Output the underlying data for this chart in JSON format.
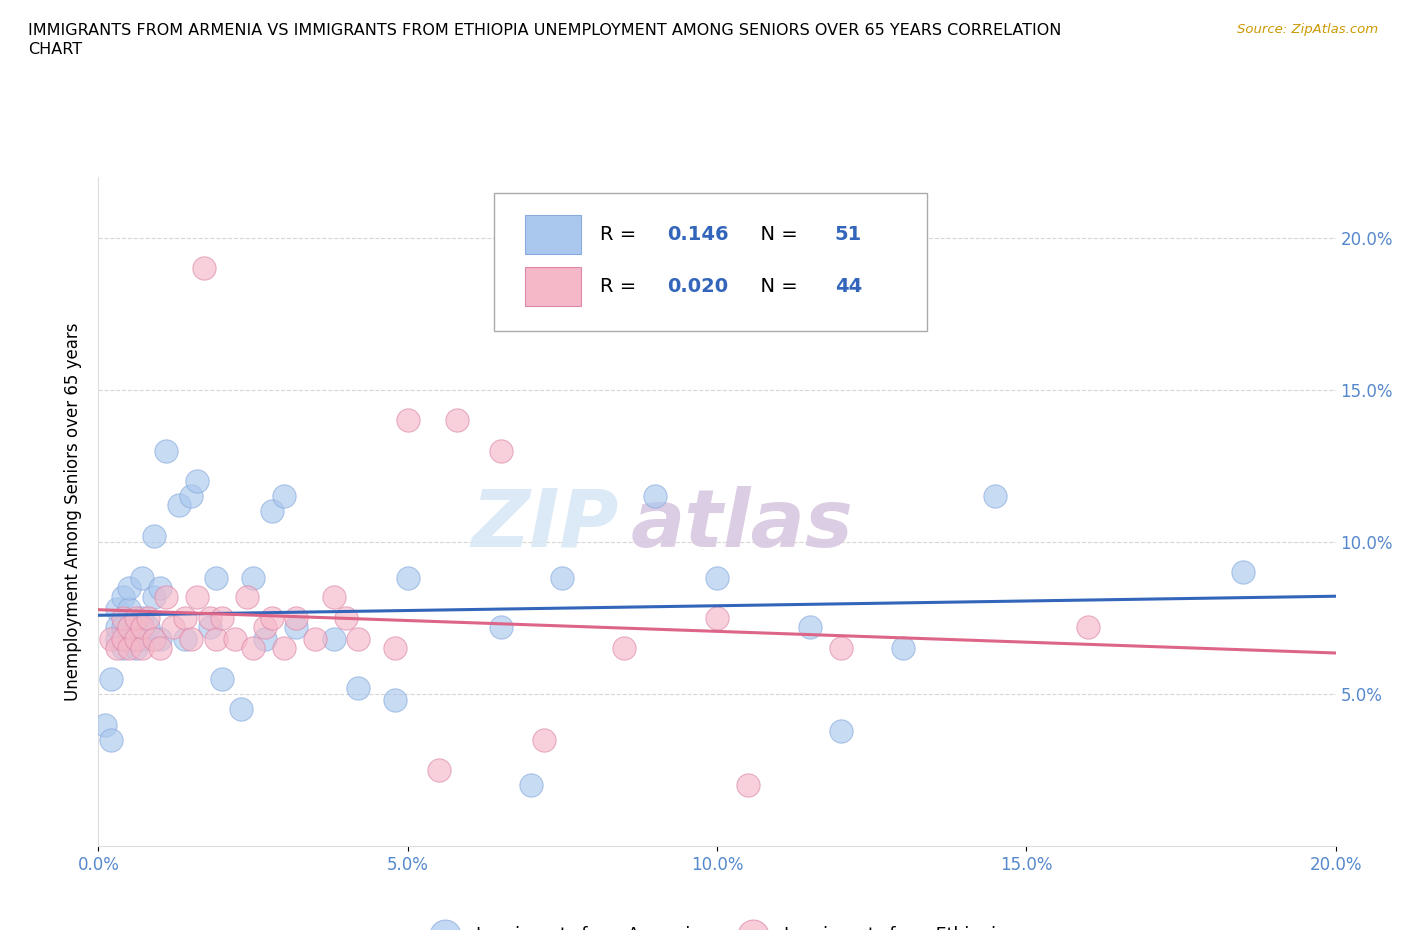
{
  "title_line1": "IMMIGRANTS FROM ARMENIA VS IMMIGRANTS FROM ETHIOPIA UNEMPLOYMENT AMONG SENIORS OVER 65 YEARS CORRELATION",
  "title_line2": "CHART",
  "source": "Source: ZipAtlas.com",
  "ylabel": "Unemployment Among Seniors over 65 years",
  "xlim": [
    0.0,
    0.2
  ],
  "ylim": [
    0.0,
    0.22
  ],
  "xticks": [
    0.0,
    0.05,
    0.1,
    0.15,
    0.2
  ],
  "xtick_labels": [
    "0.0%",
    "5.0%",
    "10.0%",
    "15.0%",
    "20.0%"
  ],
  "yticks": [
    0.05,
    0.1,
    0.15,
    0.2
  ],
  "ytick_labels": [
    "5.0%",
    "10.0%",
    "15.0%",
    "20.0%"
  ],
  "grid_color": "#cccccc",
  "background_color": "#ffffff",
  "watermark_zip": "ZIP",
  "watermark_atlas": "atlas",
  "armenia_color": "#aac8ee",
  "ethiopia_color": "#f5b8c8",
  "armenia_line_color": "#3366bb",
  "ethiopia_line_color": "#dd6688",
  "armenia_R": 0.146,
  "armenia_N": 51,
  "ethiopia_R": 0.02,
  "ethiopia_N": 44,
  "armenia_x": [
    0.001,
    0.002,
    0.002,
    0.003,
    0.003,
    0.003,
    0.004,
    0.004,
    0.004,
    0.005,
    0.005,
    0.005,
    0.005,
    0.006,
    0.006,
    0.007,
    0.007,
    0.007,
    0.008,
    0.009,
    0.009,
    0.01,
    0.01,
    0.011,
    0.013,
    0.014,
    0.015,
    0.016,
    0.018,
    0.019,
    0.02,
    0.023,
    0.025,
    0.027,
    0.028,
    0.03,
    0.032,
    0.038,
    0.042,
    0.048,
    0.05,
    0.065,
    0.07,
    0.075,
    0.09,
    0.1,
    0.115,
    0.12,
    0.13,
    0.145,
    0.185
  ],
  "armenia_y": [
    0.04,
    0.035,
    0.055,
    0.068,
    0.072,
    0.078,
    0.065,
    0.072,
    0.082,
    0.068,
    0.072,
    0.078,
    0.085,
    0.065,
    0.072,
    0.068,
    0.075,
    0.088,
    0.072,
    0.082,
    0.102,
    0.068,
    0.085,
    0.13,
    0.112,
    0.068,
    0.115,
    0.12,
    0.072,
    0.088,
    0.055,
    0.045,
    0.088,
    0.068,
    0.11,
    0.115,
    0.072,
    0.068,
    0.052,
    0.048,
    0.088,
    0.072,
    0.02,
    0.088,
    0.115,
    0.088,
    0.072,
    0.038,
    0.065,
    0.115,
    0.09
  ],
  "ethiopia_x": [
    0.002,
    0.003,
    0.004,
    0.004,
    0.005,
    0.005,
    0.006,
    0.006,
    0.007,
    0.007,
    0.008,
    0.009,
    0.01,
    0.011,
    0.012,
    0.014,
    0.015,
    0.016,
    0.017,
    0.018,
    0.019,
    0.02,
    0.022,
    0.024,
    0.025,
    0.027,
    0.028,
    0.03,
    0.032,
    0.035,
    0.038,
    0.04,
    0.042,
    0.048,
    0.05,
    0.055,
    0.058,
    0.065,
    0.072,
    0.085,
    0.1,
    0.105,
    0.12,
    0.16
  ],
  "ethiopia_y": [
    0.068,
    0.065,
    0.068,
    0.075,
    0.065,
    0.072,
    0.068,
    0.075,
    0.065,
    0.072,
    0.075,
    0.068,
    0.065,
    0.082,
    0.072,
    0.075,
    0.068,
    0.082,
    0.19,
    0.075,
    0.068,
    0.075,
    0.068,
    0.082,
    0.065,
    0.072,
    0.075,
    0.065,
    0.075,
    0.068,
    0.082,
    0.075,
    0.068,
    0.065,
    0.14,
    0.025,
    0.14,
    0.13,
    0.035,
    0.065,
    0.075,
    0.02,
    0.065,
    0.072
  ]
}
